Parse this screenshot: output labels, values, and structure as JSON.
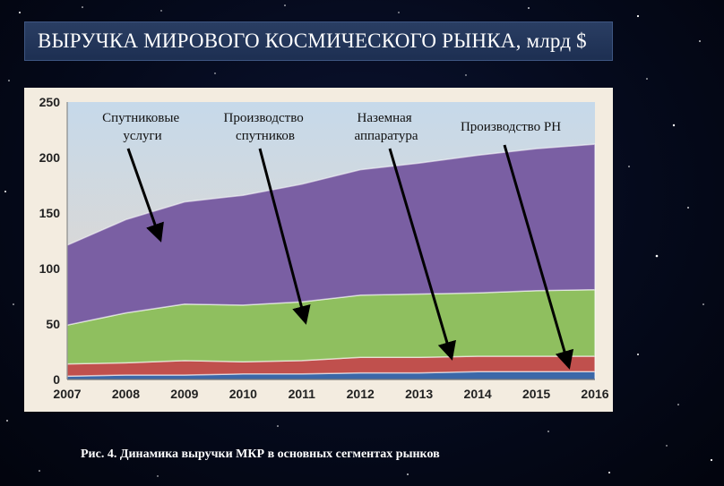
{
  "title": "ВЫРУЧКА МИРОВОГО КОСМИЧЕСКОГО РЫНКА, млрд $",
  "caption": "Рис. 4. Динамика выручки МКР в основных сегментах рынков",
  "colors": {
    "background": "#050a1c",
    "title_bar": "#23375b",
    "panel": "#f3ece0",
    "plot_top": "#c6d9ea",
    "plot_bottom": "#e8d8c8"
  },
  "chart_data": {
    "type": "area",
    "stacked": true,
    "x": [
      2007,
      2008,
      2009,
      2010,
      2011,
      2012,
      2013,
      2014,
      2015,
      2016
    ],
    "x_ticks": [
      "2007",
      "2008",
      "2009",
      "2010",
      "2011",
      "2012",
      "2013",
      "2014",
      "2015",
      "2016"
    ],
    "y_ticks": [
      "0",
      "50",
      "100",
      "150",
      "200",
      "250"
    ],
    "ylim": [
      0,
      250
    ],
    "grid": false,
    "series": [
      {
        "key": "launch",
        "color": "#3b68a8",
        "values": [
          3,
          4,
          4,
          5,
          5,
          6,
          6,
          7,
          7,
          7
        ]
      },
      {
        "key": "ground",
        "color": "#c0504d",
        "values": [
          11,
          11,
          13,
          11,
          12,
          14,
          14,
          14,
          14,
          14
        ]
      },
      {
        "key": "manufacturing",
        "color": "#8fbf5f",
        "values": [
          35,
          45,
          51,
          51,
          53,
          56,
          57,
          57,
          59,
          60
        ]
      },
      {
        "key": "services",
        "color": "#7a5fa3",
        "values": [
          72,
          84,
          92,
          99,
          106,
          113,
          118,
          124,
          128,
          131
        ]
      }
    ],
    "annotations": [
      {
        "lines": [
          "Спутниковые",
          "услуги"
        ],
        "target": "services"
      },
      {
        "lines": [
          "Производство",
          "спутников"
        ],
        "target": "manufacturing"
      },
      {
        "lines": [
          "Наземная",
          "аппаратура"
        ],
        "target": "ground"
      },
      {
        "lines": [
          "Производство РН"
        ],
        "target": "launch"
      }
    ]
  }
}
